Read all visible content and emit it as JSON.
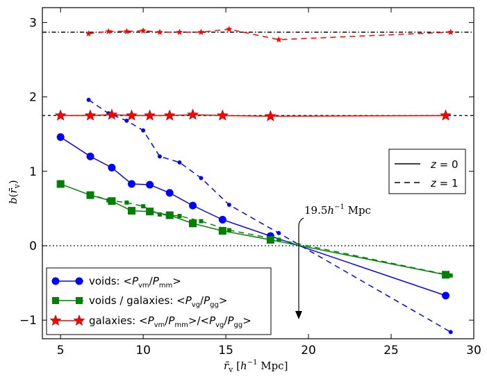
{
  "chart_data": {
    "type": "line",
    "title": "",
    "xlabel": "r̄v  [h⁻¹ Mpc]",
    "ylabel": "b(r̄v)",
    "xlim": [
      3.9,
      30
    ],
    "ylim": [
      -1.25,
      3.2
    ],
    "xticks": [
      5,
      10,
      15,
      20,
      25,
      30
    ],
    "yticks": [
      -1,
      0,
      1,
      2,
      3
    ],
    "grid": false,
    "legend_placement": "bottom-left",
    "series": [
      {
        "name": "voids z=0",
        "color": "#0000ff",
        "style": "solid",
        "marker": "circle",
        "x": [
          5.0,
          6.8,
          8.1,
          9.3,
          10.4,
          11.6,
          13.0,
          14.8,
          17.7,
          28.3
        ],
        "y": [
          1.46,
          1.2,
          1.05,
          0.83,
          0.82,
          0.71,
          0.54,
          0.35,
          0.13,
          -0.67
        ]
      },
      {
        "name": "voids z=1",
        "color": "#0000ff",
        "style": "dashed",
        "marker": "small-circle",
        "x": [
          6.7,
          7.9,
          9.0,
          10.0,
          11.0,
          12.2,
          13.5,
          15.2,
          18.2,
          28.6
        ],
        "y": [
          1.96,
          1.78,
          1.68,
          1.55,
          1.2,
          1.12,
          0.91,
          0.55,
          0.17,
          -1.16
        ]
      },
      {
        "name": "voids/galaxies z=0",
        "color": "#008000",
        "style": "solid",
        "marker": "square",
        "x": [
          5.0,
          6.8,
          8.1,
          9.3,
          10.4,
          11.6,
          13.0,
          14.8,
          17.7,
          28.3
        ],
        "y": [
          0.83,
          0.68,
          0.6,
          0.47,
          0.46,
          0.41,
          0.3,
          0.2,
          0.08,
          -0.39
        ]
      },
      {
        "name": "voids/galaxies z=1",
        "color": "#008000",
        "style": "dashed",
        "marker": "small-square",
        "x": [
          6.7,
          7.9,
          9.0,
          10.0,
          11.0,
          12.2,
          13.5,
          15.2,
          18.2,
          28.6
        ],
        "y": [
          0.7,
          0.61,
          0.58,
          0.53,
          0.42,
          0.4,
          0.33,
          0.21,
          0.08,
          -0.4
        ]
      },
      {
        "name": "galaxies z=0",
        "color": "#ff0000",
        "style": "solid",
        "marker": "star",
        "x": [
          5.0,
          6.8,
          8.1,
          9.3,
          10.4,
          11.6,
          13.0,
          14.8,
          17.7,
          28.3
        ],
        "y": [
          1.75,
          1.75,
          1.76,
          1.75,
          1.75,
          1.75,
          1.76,
          1.75,
          1.74,
          1.75
        ]
      },
      {
        "name": "galaxies z=1",
        "color": "#ff0000",
        "style": "dashed",
        "marker": "small-star",
        "x": [
          6.7,
          7.9,
          9.0,
          10.0,
          11.0,
          12.2,
          13.5,
          15.2,
          18.2,
          28.6
        ],
        "y": [
          2.85,
          2.88,
          2.88,
          2.89,
          2.87,
          2.87,
          2.87,
          2.91,
          2.77,
          2.87
        ]
      }
    ],
    "reference_lines": [
      {
        "name": "zero",
        "y": 0,
        "style": "dotted",
        "color": "#000000"
      },
      {
        "name": "galaxy bias z=0",
        "y": 1.75,
        "style": "dashed",
        "color": "#000000"
      },
      {
        "name": "galaxy bias z=1",
        "y": 2.87,
        "style": "dashdot",
        "color": "#000000"
      }
    ],
    "annotation": {
      "text": "19.5h⁻¹ Mpc",
      "x": 19.5,
      "y": 0
    },
    "legend_redshift": [
      {
        "label": "z = 0",
        "style": "solid"
      },
      {
        "label": "z = 1",
        "style": "dashed"
      }
    ],
    "legend_tracers": [
      {
        "label": "voids: <Pvm/Pmm>",
        "color": "#0000ff",
        "marker": "circle"
      },
      {
        "label": "voids / galaxies: <Pvg/Pgg>",
        "color": "#008000",
        "marker": "square"
      },
      {
        "label": "galaxies: <Pvm/Pmm>/<Pvg/Pgg>",
        "color": "#ff0000",
        "marker": "star"
      }
    ]
  }
}
